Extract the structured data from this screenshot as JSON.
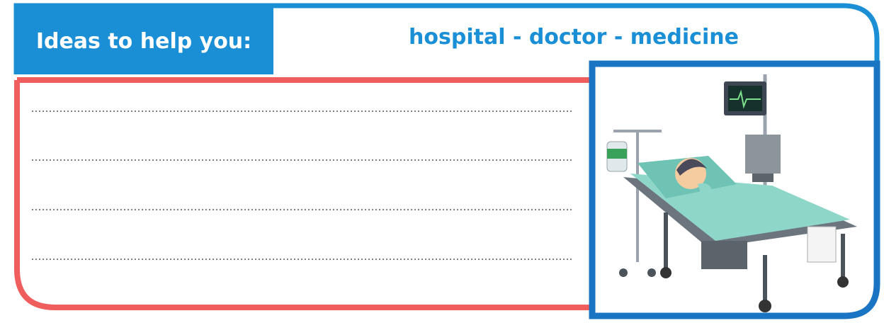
{
  "header": {
    "label": "Ideas to help you:",
    "ideas": "hospital - doctor - medicine"
  }
}
